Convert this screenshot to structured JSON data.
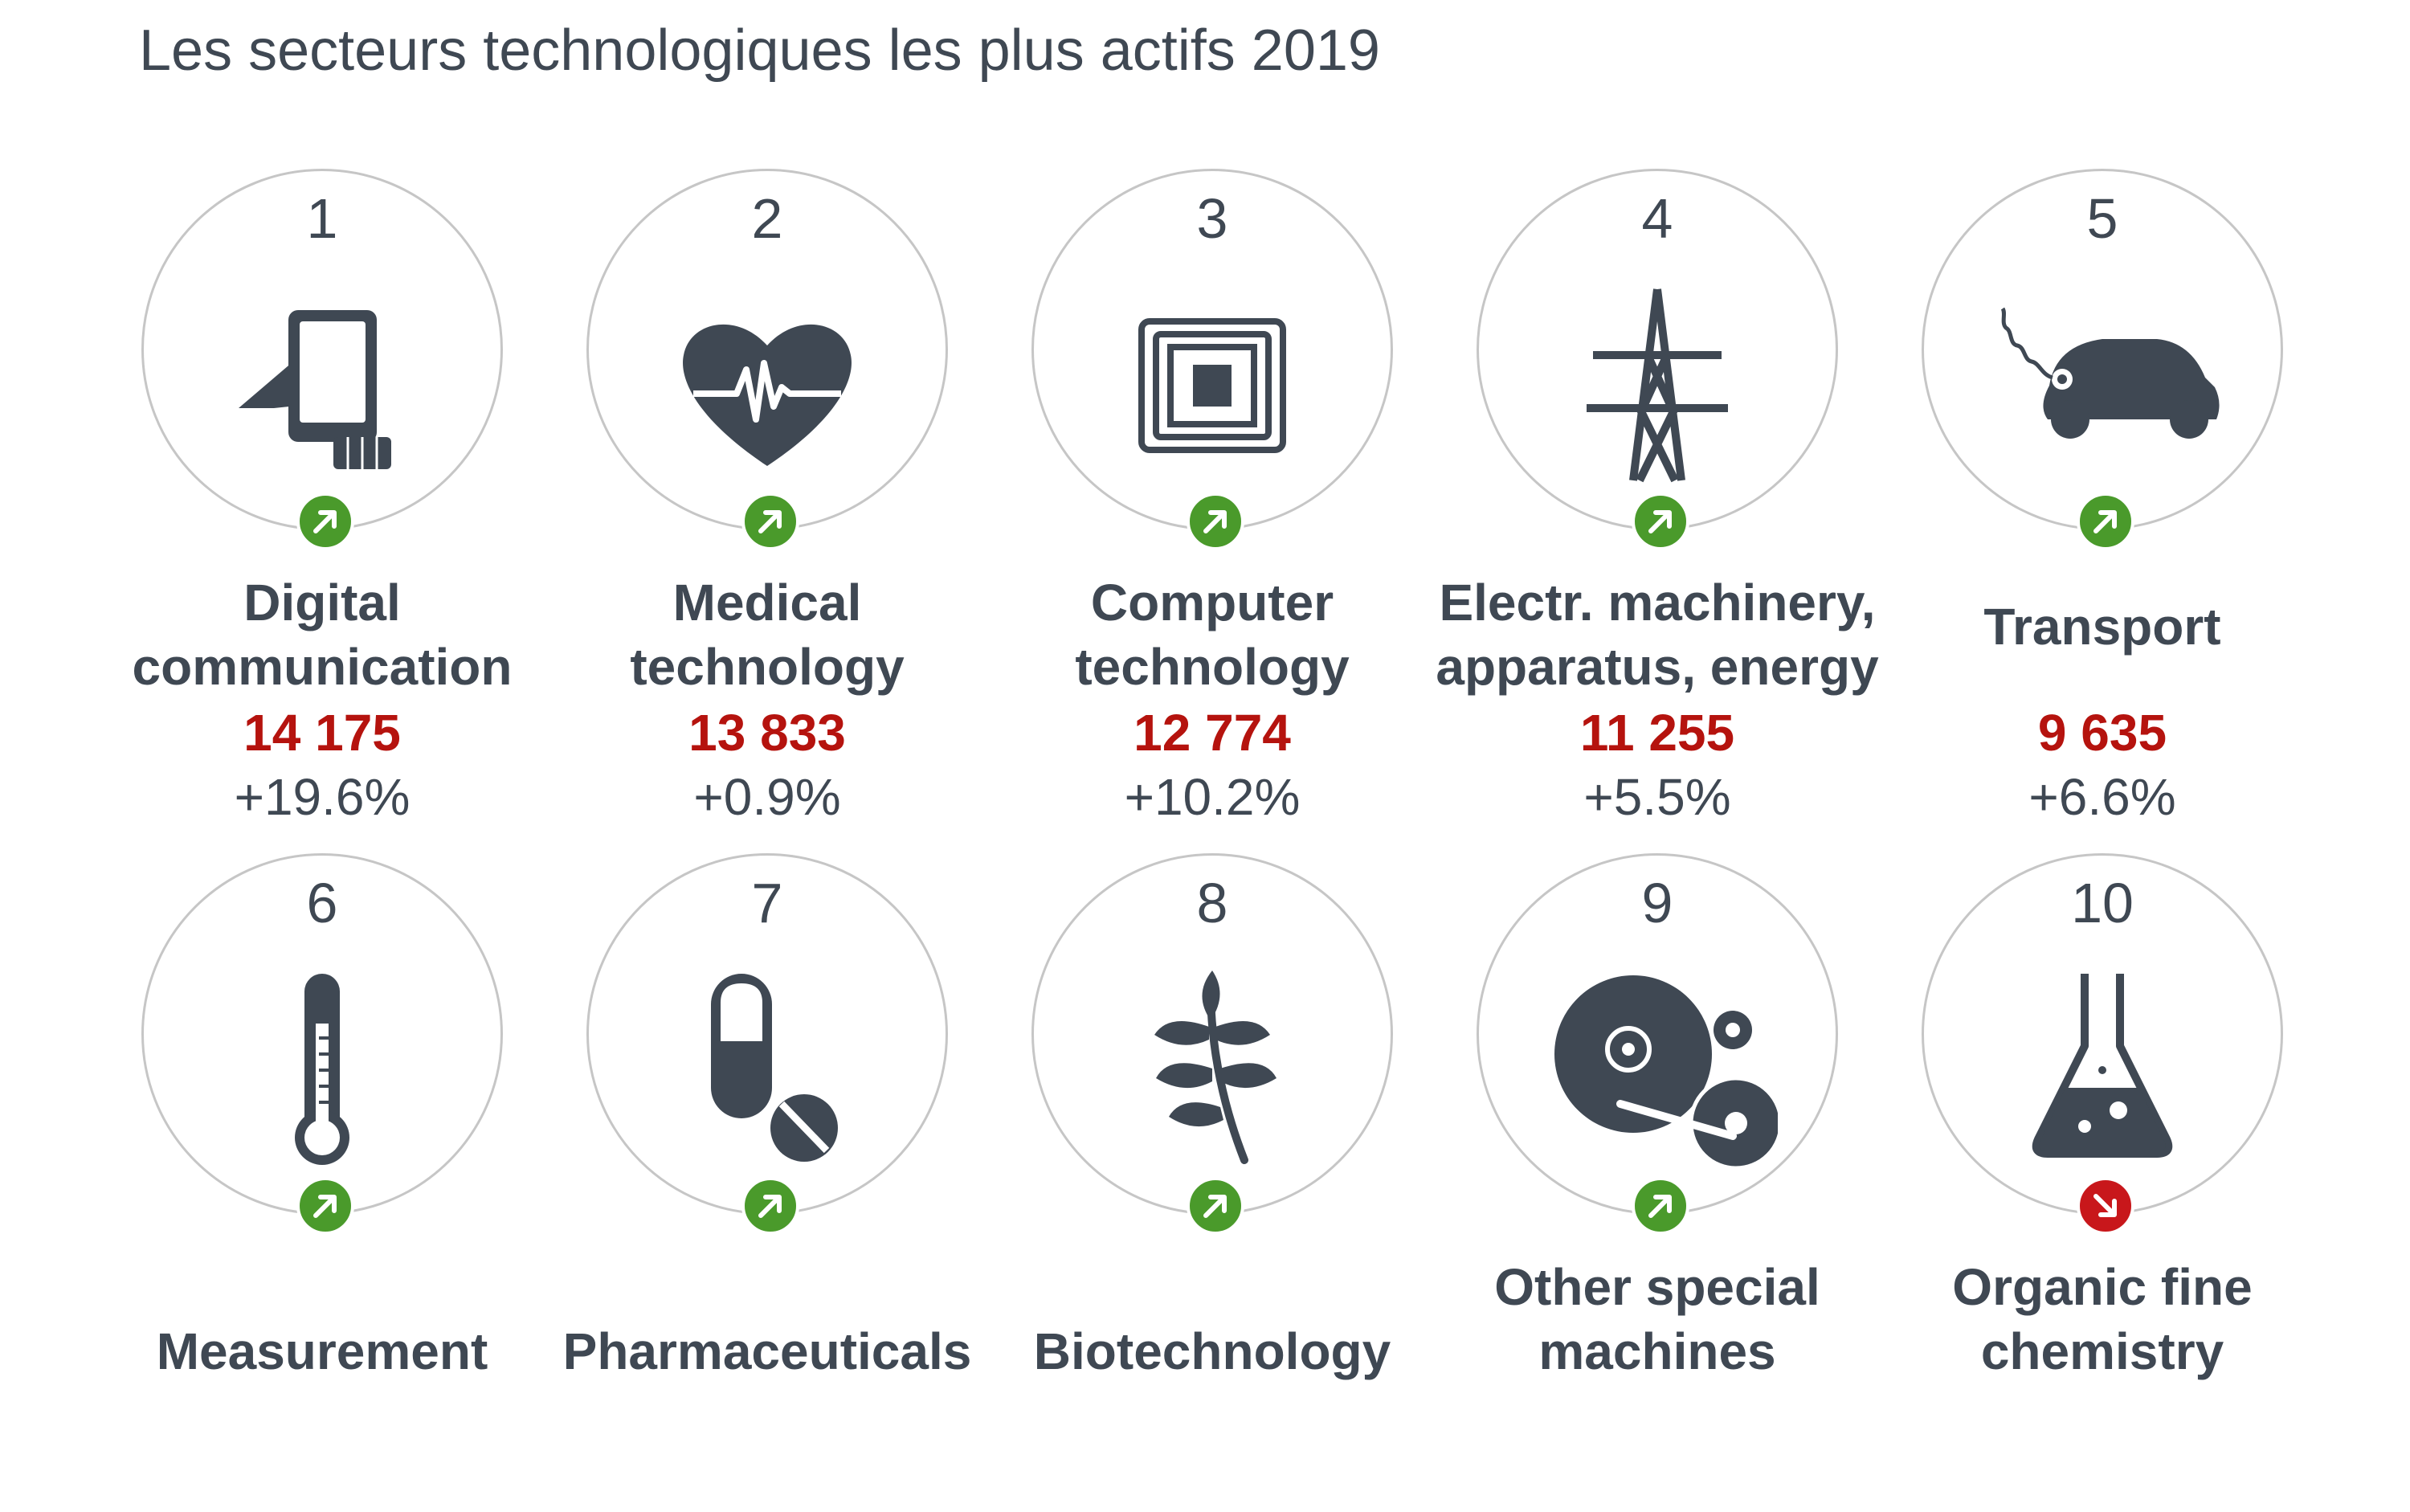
{
  "subtitle": "Les secteurs technologiques les plus actifs 2019",
  "colors": {
    "text": "#3f4853",
    "value": "#b5130e",
    "trend_up": "#4a9a2b",
    "trend_down": "#c8171b",
    "circle_border": "#c6c6c6"
  },
  "chart_data": {
    "type": "table",
    "subtitle": "Les secteurs technologiques les plus actifs 2019",
    "items": [
      {
        "rank": "1",
        "label_lines": [
          "Digital",
          "communication"
        ],
        "value": "14 175",
        "change": "+19.6%",
        "trend": "up",
        "icon": "tablet-hand-icon"
      },
      {
        "rank": "2",
        "label_lines": [
          "Medical",
          "technology"
        ],
        "value": "13 833",
        "change": "+0.9%",
        "trend": "up",
        "icon": "heartbeat-icon"
      },
      {
        "rank": "3",
        "label_lines": [
          "Computer",
          "technology"
        ],
        "value": "12 774",
        "change": "+10.2%",
        "trend": "up",
        "icon": "chip-icon"
      },
      {
        "rank": "4",
        "label_lines": [
          "Electr. machinery,",
          "apparatus, energy"
        ],
        "value": "11 255",
        "change": "+5.5%",
        "trend": "up",
        "icon": "power-pylon-icon"
      },
      {
        "rank": "5",
        "label_lines": [
          "Transport"
        ],
        "value": "9 635",
        "change": "+6.6%",
        "trend": "up",
        "icon": "electric-car-icon"
      },
      {
        "rank": "6",
        "label_lines": [
          "Measurement"
        ],
        "value": "",
        "change": "",
        "trend": "up",
        "icon": "thermometer-icon"
      },
      {
        "rank": "7",
        "label_lines": [
          "Pharmaceuticals"
        ],
        "value": "",
        "change": "",
        "trend": "up",
        "icon": "pills-icon"
      },
      {
        "rank": "8",
        "label_lines": [
          "Biotechnology"
        ],
        "value": "",
        "change": "",
        "trend": "up",
        "icon": "leaf-branch-icon"
      },
      {
        "rank": "9",
        "label_lines": [
          "Other special",
          "machines"
        ],
        "value": "",
        "change": "",
        "trend": "up",
        "icon": "machine-gears-icon"
      },
      {
        "rank": "10",
        "label_lines": [
          "Organic fine",
          "chemistry"
        ],
        "value": "",
        "change": "",
        "trend": "down",
        "icon": "flask-icon"
      }
    ]
  }
}
